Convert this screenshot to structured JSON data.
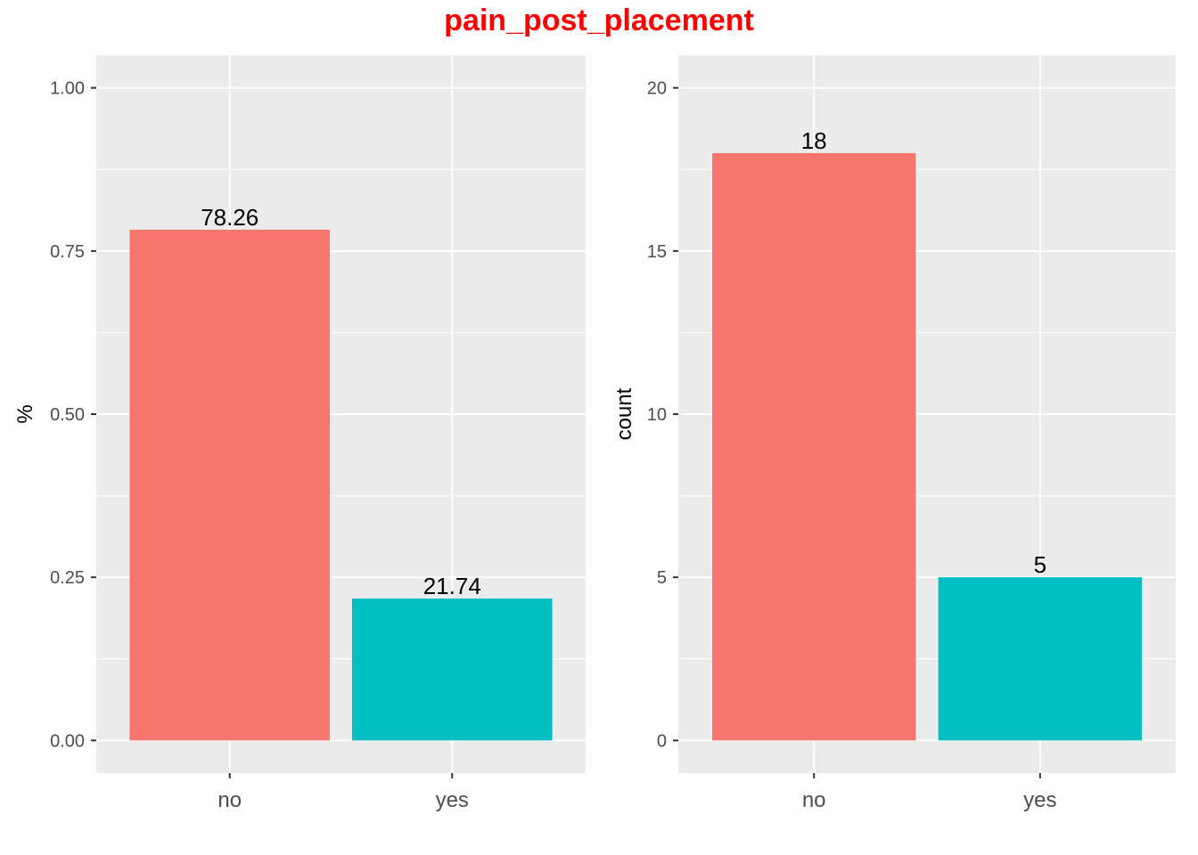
{
  "title": "pain_post_placement",
  "colors": {
    "no": "#F8766D",
    "yes": "#00BFC4",
    "title": "#ff0000",
    "panel": "#EBEBEB",
    "grid": "#ffffff"
  },
  "chart_data": [
    {
      "type": "bar",
      "categories": [
        "no",
        "yes"
      ],
      "values": [
        0.7826,
        0.2174
      ],
      "data_labels": [
        "78.26",
        "21.74"
      ],
      "xlabel": "",
      "ylabel": "%",
      "ylim": [
        -0.05,
        1.05
      ],
      "yticks": [
        0,
        0.25,
        0.5,
        0.75,
        1.0
      ],
      "ytick_labels": [
        "0.00",
        "0.25",
        "0.50",
        "0.75",
        "1.00"
      ],
      "grid": true,
      "legend": "none"
    },
    {
      "type": "bar",
      "categories": [
        "no",
        "yes"
      ],
      "values": [
        18,
        5
      ],
      "data_labels": [
        "18",
        "5"
      ],
      "xlabel": "",
      "ylabel": "count",
      "ylim": [
        -1,
        21
      ],
      "yticks": [
        0,
        5,
        10,
        15,
        20
      ],
      "ytick_labels": [
        "0",
        "5",
        "10",
        "15",
        "20"
      ],
      "grid": true,
      "legend": "none"
    }
  ]
}
